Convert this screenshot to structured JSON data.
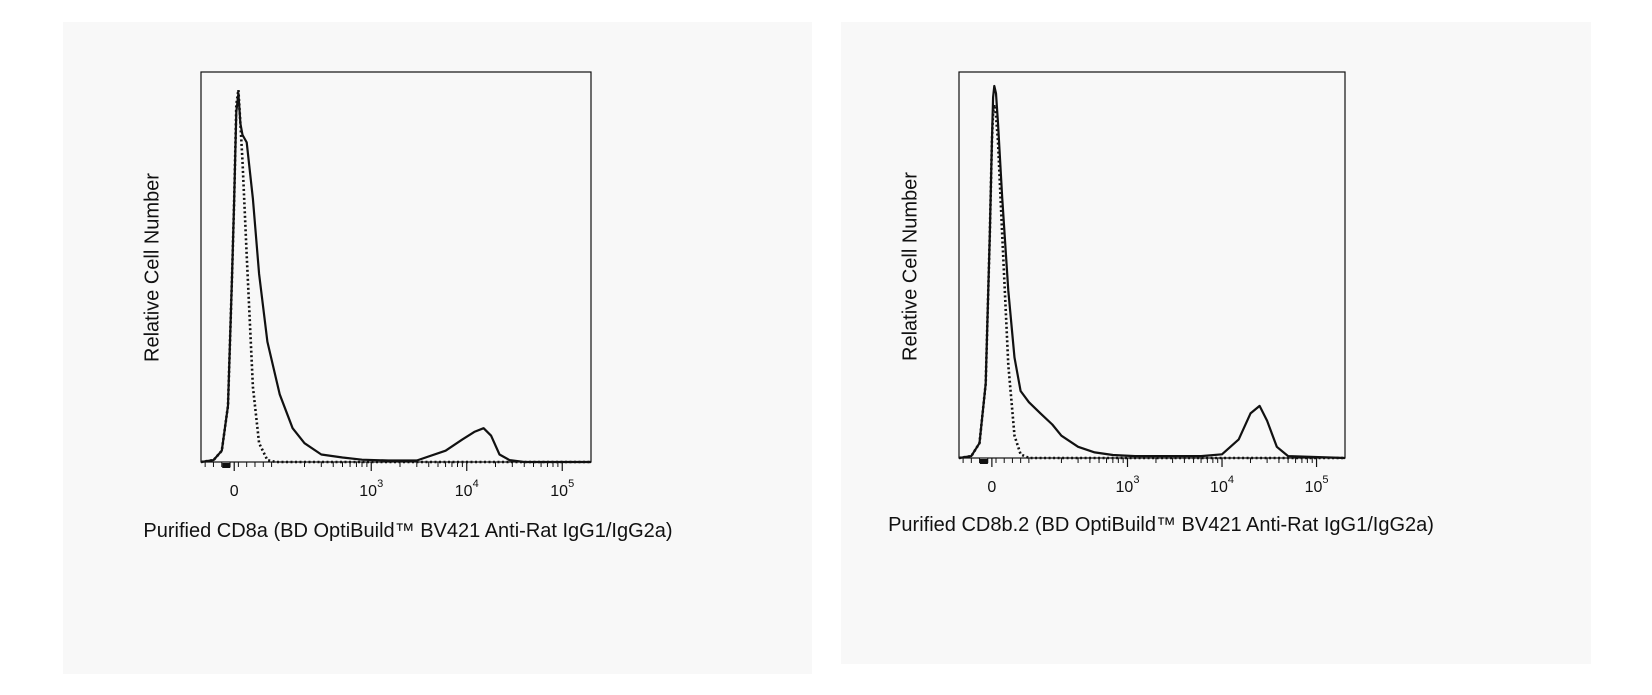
{
  "chart_data": [
    {
      "type": "area",
      "ylabel": "Relative Cell Number",
      "xlabel": "Purified CD8a (BD OptiBuild™ BV421 Anti-Rat IgG1/IgG2a)",
      "xscale": "biexponential",
      "xlim": [
        -80,
        200000
      ],
      "ylim": [
        0,
        1
      ],
      "grid": false,
      "legend": "none",
      "x_ticks": [
        {
          "value": 0,
          "base": "0",
          "exp": ""
        },
        {
          "value": 1000,
          "base": "10",
          "exp": "3"
        },
        {
          "value": 10000,
          "base": "10",
          "exp": "4"
        },
        {
          "value": 100000,
          "base": "10",
          "exp": "5"
        }
      ],
      "series": [
        {
          "style": "solid",
          "x": [
            -80,
            -50,
            -30,
            -15,
            -5,
            0,
            5,
            10,
            15,
            20,
            30,
            45,
            60,
            80,
            110,
            150,
            200,
            300,
            500,
            800,
            1500,
            3000,
            6000,
            9000,
            12000,
            15000,
            18000,
            22000,
            28000,
            40000,
            200000
          ],
          "y": [
            0,
            0.005,
            0.03,
            0.15,
            0.5,
            0.7,
            0.93,
            0.98,
            0.9,
            0.87,
            0.85,
            0.7,
            0.5,
            0.32,
            0.18,
            0.09,
            0.05,
            0.02,
            0.012,
            0.006,
            0.004,
            0.004,
            0.03,
            0.06,
            0.08,
            0.09,
            0.07,
            0.02,
            0.005,
            0,
            0
          ]
        },
        {
          "style": "dotted",
          "x": [
            -80,
            -50,
            -30,
            -15,
            -5,
            0,
            5,
            10,
            15,
            20,
            30,
            45,
            60,
            80,
            100,
            130,
            200000
          ],
          "y": [
            0,
            0.005,
            0.03,
            0.15,
            0.5,
            0.7,
            0.95,
            0.99,
            0.9,
            0.8,
            0.55,
            0.2,
            0.05,
            0.005,
            0,
            0,
            0
          ]
        }
      ]
    },
    {
      "type": "area",
      "ylabel": "Relative Cell Number",
      "xlabel": "Purified CD8b.2 (BD OptiBuild™ BV421 Anti-Rat IgG1/IgG2a)",
      "xscale": "biexponential",
      "xlim": [
        -80,
        200000
      ],
      "ylim": [
        0,
        1
      ],
      "grid": false,
      "legend": "none",
      "x_ticks": [
        {
          "value": 0,
          "base": "0",
          "exp": ""
        },
        {
          "value": 1000,
          "base": "10",
          "exp": "3"
        },
        {
          "value": 10000,
          "base": "10",
          "exp": "4"
        },
        {
          "value": 100000,
          "base": "10",
          "exp": "5"
        }
      ],
      "series": [
        {
          "style": "solid",
          "x": [
            -80,
            -50,
            -30,
            -15,
            -5,
            0,
            3,
            6,
            10,
            15,
            25,
            40,
            55,
            70,
            90,
            120,
            160,
            200,
            300,
            450,
            700,
            1200,
            3000,
            6000,
            10000,
            15000,
            20000,
            25000,
            30000,
            38000,
            50000,
            200000
          ],
          "y": [
            0,
            0.005,
            0.04,
            0.2,
            0.6,
            0.85,
            0.97,
            1.0,
            0.98,
            0.9,
            0.7,
            0.45,
            0.27,
            0.18,
            0.15,
            0.12,
            0.09,
            0.06,
            0.03,
            0.015,
            0.008,
            0.005,
            0.005,
            0.005,
            0.01,
            0.05,
            0.12,
            0.14,
            0.1,
            0.03,
            0.005,
            0
          ]
        },
        {
          "style": "dotted",
          "x": [
            -80,
            -50,
            -30,
            -15,
            -5,
            0,
            3,
            6,
            10,
            15,
            25,
            40,
            55,
            70,
            90,
            200000
          ],
          "y": [
            0,
            0.005,
            0.04,
            0.2,
            0.6,
            0.85,
            0.93,
            0.95,
            0.92,
            0.85,
            0.6,
            0.25,
            0.06,
            0.01,
            0,
            0
          ]
        }
      ]
    }
  ]
}
